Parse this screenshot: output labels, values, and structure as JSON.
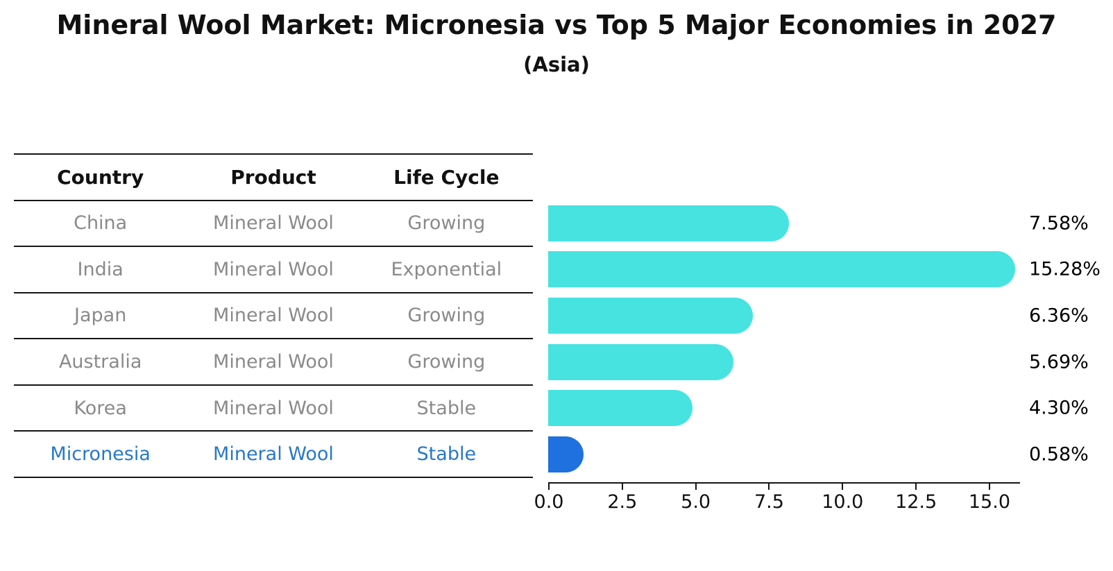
{
  "chart_data": {
    "type": "bar",
    "orientation": "horizontal",
    "title": "Mineral Wool Market: Micronesia vs Top 5 Major Economies in 2027",
    "subtitle": "(Asia)",
    "table_headers": [
      "Country",
      "Product",
      "Life Cycle"
    ],
    "rows": [
      {
        "country": "China",
        "product": "Mineral Wool",
        "life_cycle": "Growing",
        "value": 7.58,
        "label": "7.58%",
        "highlight": false
      },
      {
        "country": "India",
        "product": "Mineral Wool",
        "life_cycle": "Exponential",
        "value": 15.28,
        "label": "15.28%",
        "highlight": false
      },
      {
        "country": "Japan",
        "product": "Mineral Wool",
        "life_cycle": "Growing",
        "value": 6.36,
        "label": "6.36%",
        "highlight": false
      },
      {
        "country": "Australia",
        "product": "Mineral Wool",
        "life_cycle": "Growing",
        "value": 5.69,
        "label": "5.69%",
        "highlight": false
      },
      {
        "country": "Korea",
        "product": "Mineral Wool",
        "life_cycle": "Stable",
        "value": 4.3,
        "label": "4.30%",
        "highlight": false
      },
      {
        "country": "Micronesia",
        "product": "Mineral Wool",
        "life_cycle": "Stable",
        "value": 0.58,
        "label": "0.58%",
        "highlight": true
      }
    ],
    "x_ticks": [
      {
        "label": "0.0",
        "value": 0
      },
      {
        "label": "2.5",
        "value": 2.5
      },
      {
        "label": "5.0",
        "value": 5
      },
      {
        "label": "7.5",
        "value": 7.5
      },
      {
        "label": "10.0",
        "value": 10
      },
      {
        "label": "12.5",
        "value": 12.5
      },
      {
        "label": "15.0",
        "value": 15
      }
    ],
    "xlim": [
      0,
      16.05
    ],
    "grid": false,
    "legend": null,
    "colors": {
      "bar": "#46E3E0",
      "highlight_bar": "#1E71DE",
      "row_text": "#8a8a8a",
      "highlight_text": "#2878C8",
      "header_text": "#111111",
      "value_label": "#000000",
      "axis": "#151515"
    }
  }
}
